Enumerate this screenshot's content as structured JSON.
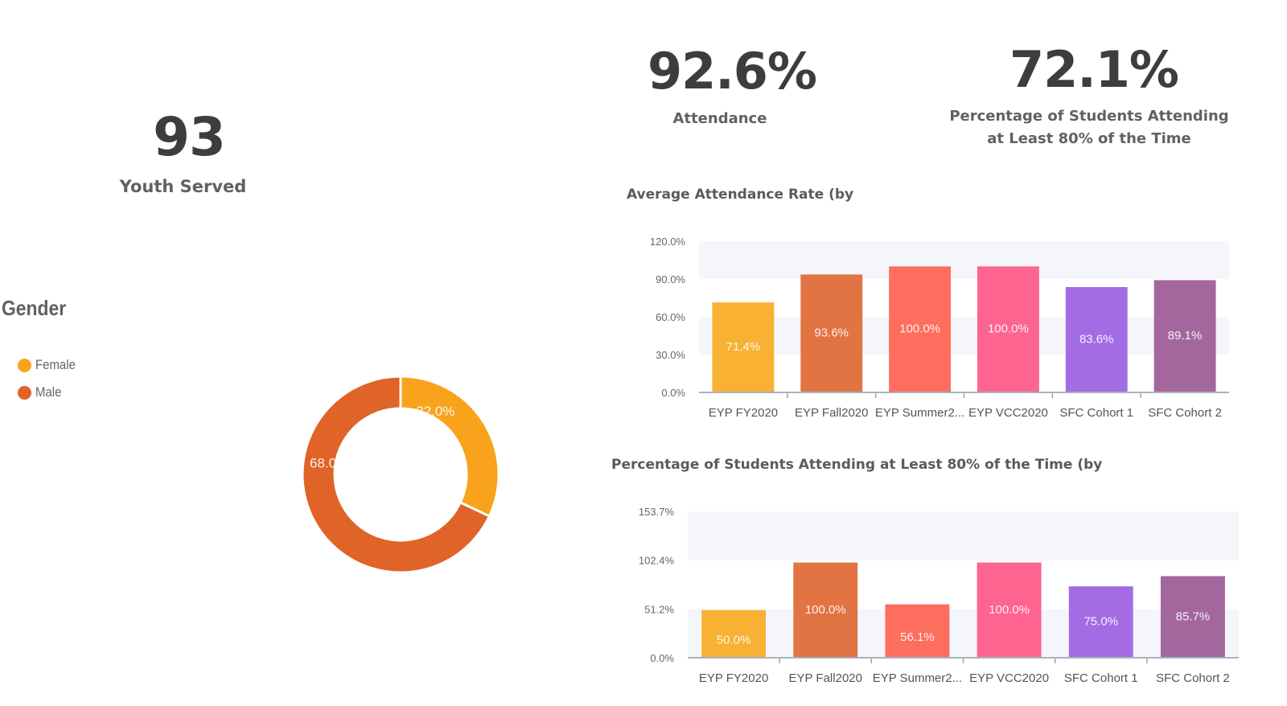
{
  "kpis": {
    "youth_served": {
      "value": "93",
      "label": "Youth Served"
    },
    "attendance": {
      "value": "92.6%",
      "label": "Attendance"
    },
    "pct_80": {
      "value": "72.1%",
      "label_line1": "Percentage of Students Attending",
      "label_line2": "at Least 80% of the Time"
    }
  },
  "chart_data": [
    {
      "type": "pie",
      "title": "Gender",
      "donut": true,
      "legend_position": "left",
      "categories": [
        "Female",
        "Male"
      ],
      "values": [
        32.0,
        68.0
      ],
      "labels": [
        "32.0%",
        "68.0%"
      ],
      "colors": [
        "#f9a21b",
        "#e06328"
      ]
    },
    {
      "type": "bar",
      "title": "Average Attendance Rate (by",
      "categories": [
        "EYP FY2020",
        "EYP Fall2020",
        "EYP Summer2...",
        "EYP VCC2020",
        "SFC Cohort 1",
        "SFC Cohort 2"
      ],
      "values": [
        71.4,
        93.6,
        100.0,
        100.0,
        83.6,
        89.1
      ],
      "data_labels": [
        "71.4%",
        "93.6%",
        "100.0%",
        "100.0%",
        "83.6%",
        "89.1%"
      ],
      "colors": [
        "#f8b133",
        "#e27443",
        "#fe6e5e",
        "#fe6490",
        "#a36ce2",
        "#a3679e"
      ],
      "yticks": [
        0.0,
        30.0,
        60.0,
        90.0,
        120.0
      ],
      "ytick_labels": [
        "0.0%",
        "30.0%",
        "60.0%",
        "90.0%",
        "120.0%"
      ],
      "ylim": [
        0,
        120
      ],
      "xlabel": "",
      "ylabel": ""
    },
    {
      "type": "bar",
      "title": "Percentage of Students Attending at Least 80% of the Time (by",
      "categories": [
        "EYP FY2020",
        "EYP Fall2020",
        "EYP Summer2...",
        "EYP VCC2020",
        "SFC Cohort 1",
        "SFC Cohort 2"
      ],
      "values": [
        50.0,
        100.0,
        56.1,
        100.0,
        75.0,
        85.7
      ],
      "data_labels": [
        "50.0%",
        "100.0%",
        "56.1%",
        "100.0%",
        "75.0%",
        "85.7%"
      ],
      "colors": [
        "#f8b133",
        "#e27443",
        "#fe6e5e",
        "#fe6490",
        "#a36ce2",
        "#a3679e"
      ],
      "yticks": [
        0.0,
        51.2,
        102.4,
        153.7
      ],
      "ytick_labels": [
        "0.0%",
        "51.2%",
        "102.4%",
        "153.7%"
      ],
      "ylim": [
        0,
        153.7
      ],
      "xlabel": "",
      "ylabel": ""
    }
  ]
}
